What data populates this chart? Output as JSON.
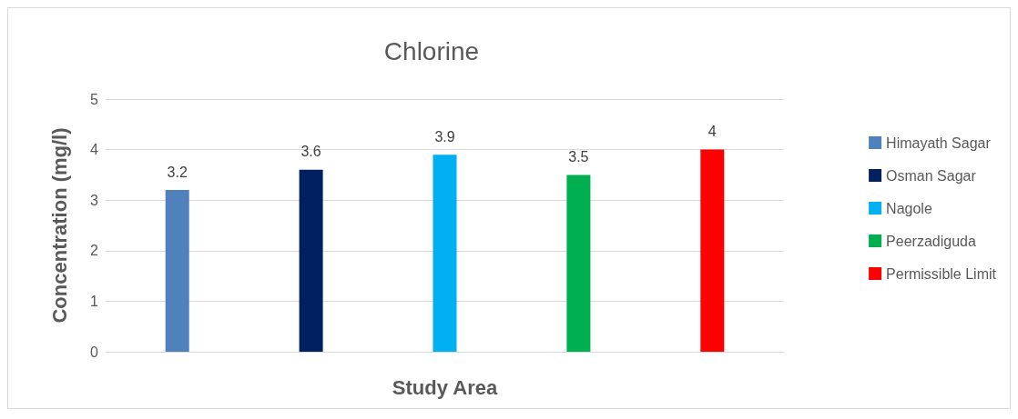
{
  "chart_data": {
    "type": "bar",
    "title": "Chlorine",
    "xlabel": "Study Area",
    "ylabel": "Concentration (mg/l)",
    "categories": [
      null
    ],
    "series": [
      {
        "name": "Himayath Sagar",
        "color": "#4f81bd",
        "values": [
          3.2
        ]
      },
      {
        "name": "Osman Sagar",
        "color": "#002060",
        "values": [
          3.6
        ]
      },
      {
        "name": "Nagole",
        "color": "#00b0f0",
        "values": [
          3.9
        ]
      },
      {
        "name": "Peerzadiguda",
        "color": "#00b050",
        "values": [
          3.5
        ]
      },
      {
        "name": "Permissible Limit",
        "color": "#ff0000",
        "values": [
          4
        ]
      }
    ],
    "ylim": [
      0,
      5
    ],
    "yticks": [
      0,
      1,
      2,
      3,
      4,
      5
    ],
    "grid": "y",
    "legend": "right",
    "data_labels": true
  }
}
